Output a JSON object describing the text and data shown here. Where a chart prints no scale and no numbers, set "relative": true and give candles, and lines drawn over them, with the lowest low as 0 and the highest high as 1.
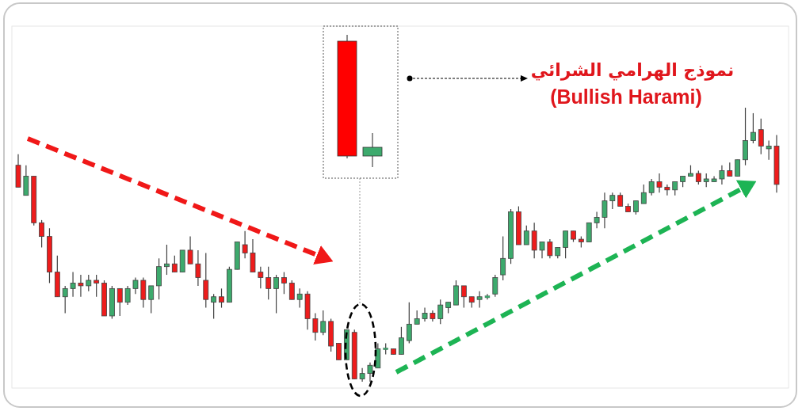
{
  "chart_data": {
    "type": "candlestick",
    "relative": true,
    "annotations": [
      "نموذج الهرامي الشرائي",
      "(Bullish Harami)"
    ],
    "categories": [
      null,
      null,
      null,
      null,
      null,
      null,
      null,
      null,
      null,
      null,
      null,
      null,
      null,
      null,
      null,
      null,
      null,
      null,
      null,
      null,
      null,
      null,
      null,
      null,
      null,
      null,
      null,
      null,
      null,
      null,
      null,
      null,
      null,
      null,
      null,
      null,
      null,
      null,
      null,
      null,
      null,
      null,
      null,
      null,
      null,
      null,
      null,
      null,
      null,
      null,
      null,
      null,
      null,
      null,
      null,
      null,
      null,
      null,
      null,
      null,
      null,
      null,
      null,
      null,
      null,
      null,
      null,
      null,
      null,
      null,
      null,
      null,
      null,
      null,
      null,
      null,
      null,
      null,
      null,
      null,
      null,
      null,
      null,
      null,
      null,
      null,
      null,
      null,
      null,
      null,
      null,
      null,
      null,
      null,
      null,
      null,
      null,
      null
    ],
    "ohlc": [
      [
        0.79,
        0.83,
        0.71,
        0.71
      ],
      [
        0.68,
        0.79,
        0.68,
        0.75
      ],
      [
        0.75,
        0.75,
        0.57,
        0.58
      ],
      [
        0.58,
        0.59,
        0.49,
        0.53
      ],
      [
        0.53,
        0.56,
        0.36,
        0.4
      ],
      [
        0.4,
        0.46,
        0.31,
        0.31
      ],
      [
        0.31,
        0.35,
        0.25,
        0.34
      ],
      [
        0.34,
        0.4,
        0.31,
        0.36
      ],
      [
        0.36,
        0.39,
        0.31,
        0.35
      ],
      [
        0.35,
        0.39,
        0.33,
        0.37
      ],
      [
        0.37,
        0.39,
        0.31,
        0.36
      ],
      [
        0.36,
        0.37,
        0.24,
        0.24
      ],
      [
        0.24,
        0.35,
        0.23,
        0.34
      ],
      [
        0.34,
        0.34,
        0.24,
        0.29
      ],
      [
        0.29,
        0.35,
        0.28,
        0.34
      ],
      [
        0.34,
        0.38,
        0.32,
        0.37
      ],
      [
        0.37,
        0.38,
        0.27,
        0.3
      ],
      [
        0.3,
        0.35,
        0.25,
        0.35
      ],
      [
        0.35,
        0.45,
        0.3,
        0.42
      ],
      [
        0.42,
        0.5,
        0.39,
        0.43
      ],
      [
        0.43,
        0.46,
        0.4,
        0.4
      ],
      [
        0.4,
        0.48,
        0.4,
        0.48
      ],
      [
        0.48,
        0.53,
        0.43,
        0.43
      ],
      [
        0.43,
        0.48,
        0.35,
        0.38
      ],
      [
        0.37,
        0.47,
        0.27,
        0.3
      ],
      [
        0.29,
        0.32,
        0.23,
        0.31
      ],
      [
        0.31,
        0.34,
        0.27,
        0.29
      ],
      [
        0.29,
        0.42,
        0.29,
        0.41
      ],
      [
        0.41,
        0.51,
        0.41,
        0.51
      ],
      [
        0.5,
        0.55,
        0.45,
        0.47
      ],
      [
        0.47,
        0.52,
        0.4,
        0.4
      ],
      [
        0.4,
        0.42,
        0.34,
        0.38
      ],
      [
        0.38,
        0.42,
        0.3,
        0.34
      ],
      [
        0.34,
        0.39,
        0.25,
        0.38
      ],
      [
        0.38,
        0.4,
        0.32,
        0.36
      ],
      [
        0.36,
        0.37,
        0.3,
        0.3
      ],
      [
        0.3,
        0.34,
        0.27,
        0.32
      ],
      [
        0.32,
        0.33,
        0.19,
        0.23
      ],
      [
        0.23,
        0.25,
        0.15,
        0.18
      ],
      [
        0.18,
        0.26,
        0.17,
        0.22
      ],
      [
        0.22,
        0.23,
        0.11,
        0.13
      ],
      [
        0.14,
        0.14,
        0.08,
        0.08
      ],
      [
        0.08,
        0.19,
        0.08,
        0.19
      ],
      [
        0.18,
        0.19,
        0.01,
        0.01
      ],
      [
        0.01,
        0.05,
        0,
        0.03
      ],
      [
        0.03,
        0.07,
        0,
        0.06
      ],
      [
        0.05,
        0.14,
        0.05,
        0.12
      ],
      [
        0.12,
        0.14,
        0.1,
        0.12
      ],
      [
        0.12,
        0.12,
        0.1,
        0.1
      ],
      [
        0.1,
        0.2,
        0.1,
        0.16
      ],
      [
        0.15,
        0.29,
        0.14,
        0.21
      ],
      [
        0.21,
        0.26,
        0.21,
        0.23
      ],
      [
        0.23,
        0.27,
        0.22,
        0.25
      ],
      [
        0.25,
        0.26,
        0.22,
        0.23
      ],
      [
        0.23,
        0.3,
        0.21,
        0.28
      ],
      [
        0.27,
        0.29,
        0.25,
        0.29
      ],
      [
        0.28,
        0.37,
        0.28,
        0.35
      ],
      [
        0.35,
        0.35,
        0.27,
        0.31
      ],
      [
        0.31,
        0.31,
        0.27,
        0.29
      ],
      [
        0.3,
        0.33,
        0.27,
        0.31
      ],
      [
        0.31,
        0.32,
        0.3,
        0.31
      ],
      [
        0.32,
        0.39,
        0.31,
        0.38
      ],
      [
        0.39,
        0.53,
        0.37,
        0.45
      ],
      [
        0.45,
        0.63,
        0.43,
        0.62
      ],
      [
        0.62,
        0.64,
        0.5,
        0.5
      ],
      [
        0.5,
        0.57,
        0.5,
        0.55
      ],
      [
        0.55,
        0.58,
        0.45,
        0.48
      ],
      [
        0.48,
        0.51,
        0.45,
        0.51
      ],
      [
        0.51,
        0.52,
        0.45,
        0.46
      ],
      [
        0.46,
        0.49,
        0.45,
        0.49
      ],
      [
        0.49,
        0.55,
        0.45,
        0.55
      ],
      [
        0.55,
        0.55,
        0.51,
        0.52
      ],
      [
        0.52,
        0.53,
        0.49,
        0.51
      ],
      [
        0.51,
        0.58,
        0.51,
        0.58
      ],
      [
        0.58,
        0.62,
        0.56,
        0.6
      ],
      [
        0.6,
        0.69,
        0.56,
        0.66
      ],
      [
        0.66,
        0.69,
        0.63,
        0.68
      ],
      [
        0.68,
        0.69,
        0.64,
        0.64
      ],
      [
        0.64,
        0.65,
        0.62,
        0.62
      ],
      [
        0.62,
        0.66,
        0.61,
        0.66
      ],
      [
        0.65,
        0.72,
        0.65,
        0.69
      ],
      [
        0.69,
        0.74,
        0.68,
        0.73
      ],
      [
        0.73,
        0.76,
        0.69,
        0.71
      ],
      [
        0.71,
        0.72,
        0.68,
        0.7
      ],
      [
        0.7,
        0.73,
        0.68,
        0.73
      ],
      [
        0.73,
        0.75,
        0.71,
        0.75
      ],
      [
        0.75,
        0.79,
        0.75,
        0.76
      ],
      [
        0.76,
        0.77,
        0.72,
        0.73
      ],
      [
        0.73,
        0.76,
        0.71,
        0.74
      ],
      [
        0.73,
        0.75,
        0.73,
        0.74
      ],
      [
        0.74,
        0.79,
        0.72,
        0.77
      ],
      [
        0.77,
        0.8,
        0.75,
        0.75
      ],
      [
        0.75,
        0.81,
        0.75,
        0.81
      ],
      [
        0.81,
        1,
        0.79,
        0.88
      ],
      [
        0.88,
        0.98,
        0.87,
        0.91
      ],
      [
        0.92,
        0.96,
        0.83,
        0.86
      ],
      [
        0.85,
        0.88,
        0.81,
        0.86
      ],
      [
        0.86,
        0.9,
        0.69,
        0.72
      ]
    ],
    "colors": [
      "#ee1c1c",
      "#3daa6d",
      "#ee1c1c",
      "#ee1c1c",
      "#ee1c1c",
      "#ee1c1c",
      "#3daa6d",
      "#3daa6d",
      "#ee1c1c",
      "#3daa6d",
      "#ee1c1c",
      "#ee1c1c",
      "#3daa6d",
      "#ee1c1c",
      "#3daa6d",
      "#3daa6d",
      "#ee1c1c",
      "#3daa6d",
      "#3daa6d",
      "#3daa6d",
      "#ee1c1c",
      "#3daa6d",
      "#ee1c1c",
      "#ee1c1c",
      "#ee1c1c",
      "#3daa6d",
      "#ee1c1c",
      "#3daa6d",
      "#3daa6d",
      "#ee1c1c",
      "#ee1c1c",
      "#ee1c1c",
      "#ee1c1c",
      "#3daa6d",
      "#ee1c1c",
      "#ee1c1c",
      "#3daa6d",
      "#ee1c1c",
      "#ee1c1c",
      "#3daa6d",
      "#ee1c1c",
      "#ee1c1c",
      "#3daa6d",
      "#ee1c1c",
      "#3daa6d",
      "#3daa6d",
      "#3daa6d",
      "#3daa6d",
      "#ee1c1c",
      "#3daa6d",
      "#3daa6d",
      "#3daa6d",
      "#3daa6d",
      "#ee1c1c",
      "#3daa6d",
      "#3daa6d",
      "#3daa6d",
      "#ee1c1c",
      "#ee1c1c",
      "#3daa6d",
      "#3daa6d",
      "#3daa6d",
      "#3daa6d",
      "#3daa6d",
      "#ee1c1c",
      "#3daa6d",
      "#ee1c1c",
      "#3daa6d",
      "#ee1c1c",
      "#3daa6d",
      "#3daa6d",
      "#ee1c1c",
      "#ee1c1c",
      "#3daa6d",
      "#3daa6d",
      "#3daa6d",
      "#3daa6d",
      "#ee1c1c",
      "#ee1c1c",
      "#3daa6d",
      "#3daa6d",
      "#3daa6d",
      "#ee1c1c",
      "#ee1c1c",
      "#3daa6d",
      "#3daa6d",
      "#3daa6d",
      "#ee1c1c",
      "#3daa6d",
      "#3daa6d",
      "#3daa6d",
      "#ee1c1c",
      "#3daa6d",
      "#3daa6d",
      "#3daa6d",
      "#ee1c1c",
      "#3daa6d",
      "#ee1c1c"
    ]
  }
}
